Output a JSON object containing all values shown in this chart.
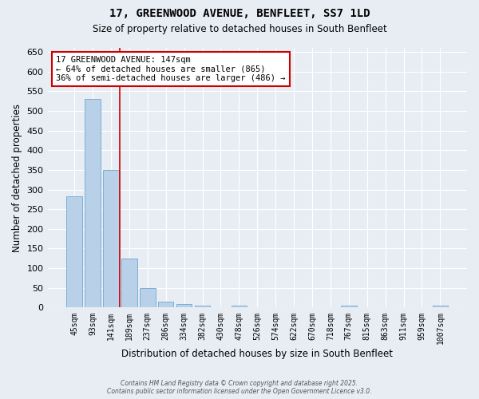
{
  "title_line1": "17, GREENWOOD AVENUE, BENFLEET, SS7 1LD",
  "title_line2": "Size of property relative to detached houses in South Benfleet",
  "xlabel": "Distribution of detached houses by size in South Benfleet",
  "ylabel": "Number of detached properties",
  "bar_labels": [
    "45sqm",
    "93sqm",
    "141sqm",
    "189sqm",
    "237sqm",
    "286sqm",
    "334sqm",
    "382sqm",
    "430sqm",
    "478sqm",
    "526sqm",
    "574sqm",
    "622sqm",
    "670sqm",
    "718sqm",
    "767sqm",
    "815sqm",
    "863sqm",
    "911sqm",
    "959sqm",
    "1007sqm"
  ],
  "bar_values": [
    283,
    530,
    350,
    125,
    50,
    15,
    10,
    5,
    0,
    5,
    0,
    0,
    0,
    0,
    0,
    5,
    0,
    0,
    0,
    0,
    5
  ],
  "bar_color": "#b8d0e8",
  "bar_edge_color": "#7aafd4",
  "background_color": "#e8edf4",
  "grid_color": "#ffffff",
  "red_line_x": 2.5,
  "annotation_text_line1": "17 GREENWOOD AVENUE: 147sqm",
  "annotation_text_line2": "← 64% of detached houses are smaller (865)",
  "annotation_text_line3": "36% of semi-detached houses are larger (486) →",
  "annotation_box_color": "#ffffff",
  "annotation_box_edge_color": "#cc0000",
  "ylim_max": 660,
  "yticks": [
    0,
    50,
    100,
    150,
    200,
    250,
    300,
    350,
    400,
    450,
    500,
    550,
    600,
    650
  ],
  "footer_line1": "Contains HM Land Registry data © Crown copyright and database right 2025.",
  "footer_line2": "Contains public sector information licensed under the Open Government Licence v3.0."
}
